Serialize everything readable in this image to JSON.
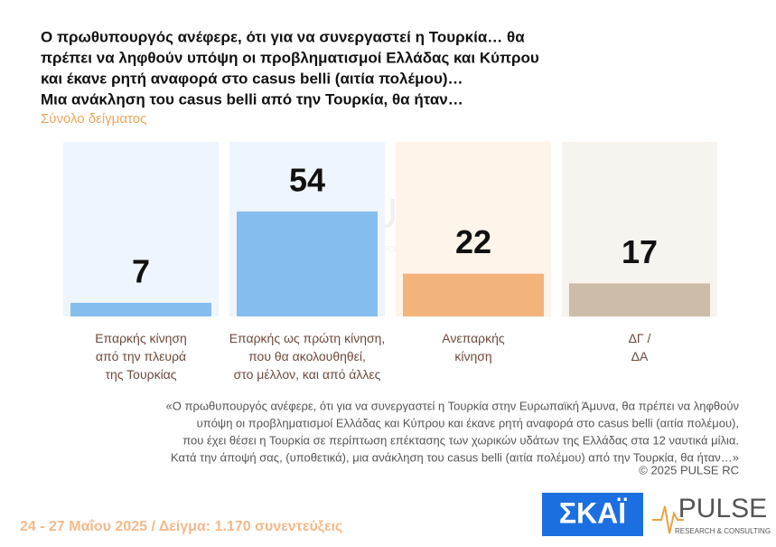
{
  "chart_data": {
    "type": "bar",
    "title": [
      "Ο πρωθυπουργός ανέφερε, ότι για να συνεργαστεί η Τουρκία… θα",
      "πρέπει να ληφθούν υπόψη οι προβληματισμοί Ελλάδας και Κύπρου",
      "και έκανε ρητή αναφορά στο casus belli (αιτία πολέμου)…",
      "Μια ανάκληση του casus belli από την Τουρκία, θα ήταν…"
    ],
    "subtitle": "Σύνολο δείγματος",
    "categories": [
      "Επαρκής κίνηση\nαπό την πλευρά\nτης Τουρκίας",
      "Επαρκής ως πρώτη κίνηση,\nπου θα ακολουθηθεί,\nστο μέλλον, και από άλλες",
      "Ανεπαρκής\nκίνηση",
      "ΔΓ /\nΔΑ"
    ],
    "values": [
      7,
      54,
      22,
      17
    ],
    "colors": [
      "#86bdef",
      "#86bdef",
      "#f3b47c",
      "#cdbca8"
    ],
    "note": [
      "«Ο πρωθυπουργός ανέφερε, ότι για να συνεργαστεί η Τουρκία στην Ευρωπαϊκή Άμυνα, θα πρέπει να ληφθούν",
      "υπόψη οι προβληματισμοί Ελλάδας και Κύπρου και έκανε ρητή αναφορά στο casus belli (αιτία πολέμου),",
      "που έχει θέσει η Τουρκία σε περίπτωση επέκτασης των χωρικών υδάτων της Ελλάδας στα 12 ναυτικά μίλια.",
      "Κατά την άποψή σας, (υποθετικά), μια ανάκληση του casus belli (αιτία πολέμου) από την Τουρκία, θα ήταν…»"
    ],
    "copyright": "©  2025  PULSE RC",
    "footer": "24 - 27 Μαΐου 2025  /  Δείγμα:  1.170 συνεντεύξεις",
    "logo_skai": "ΣΚΑΪ",
    "logo_pulse": "PULSE",
    "logo_pulse_tagline": "RESEARCH & CONSULTING"
  }
}
